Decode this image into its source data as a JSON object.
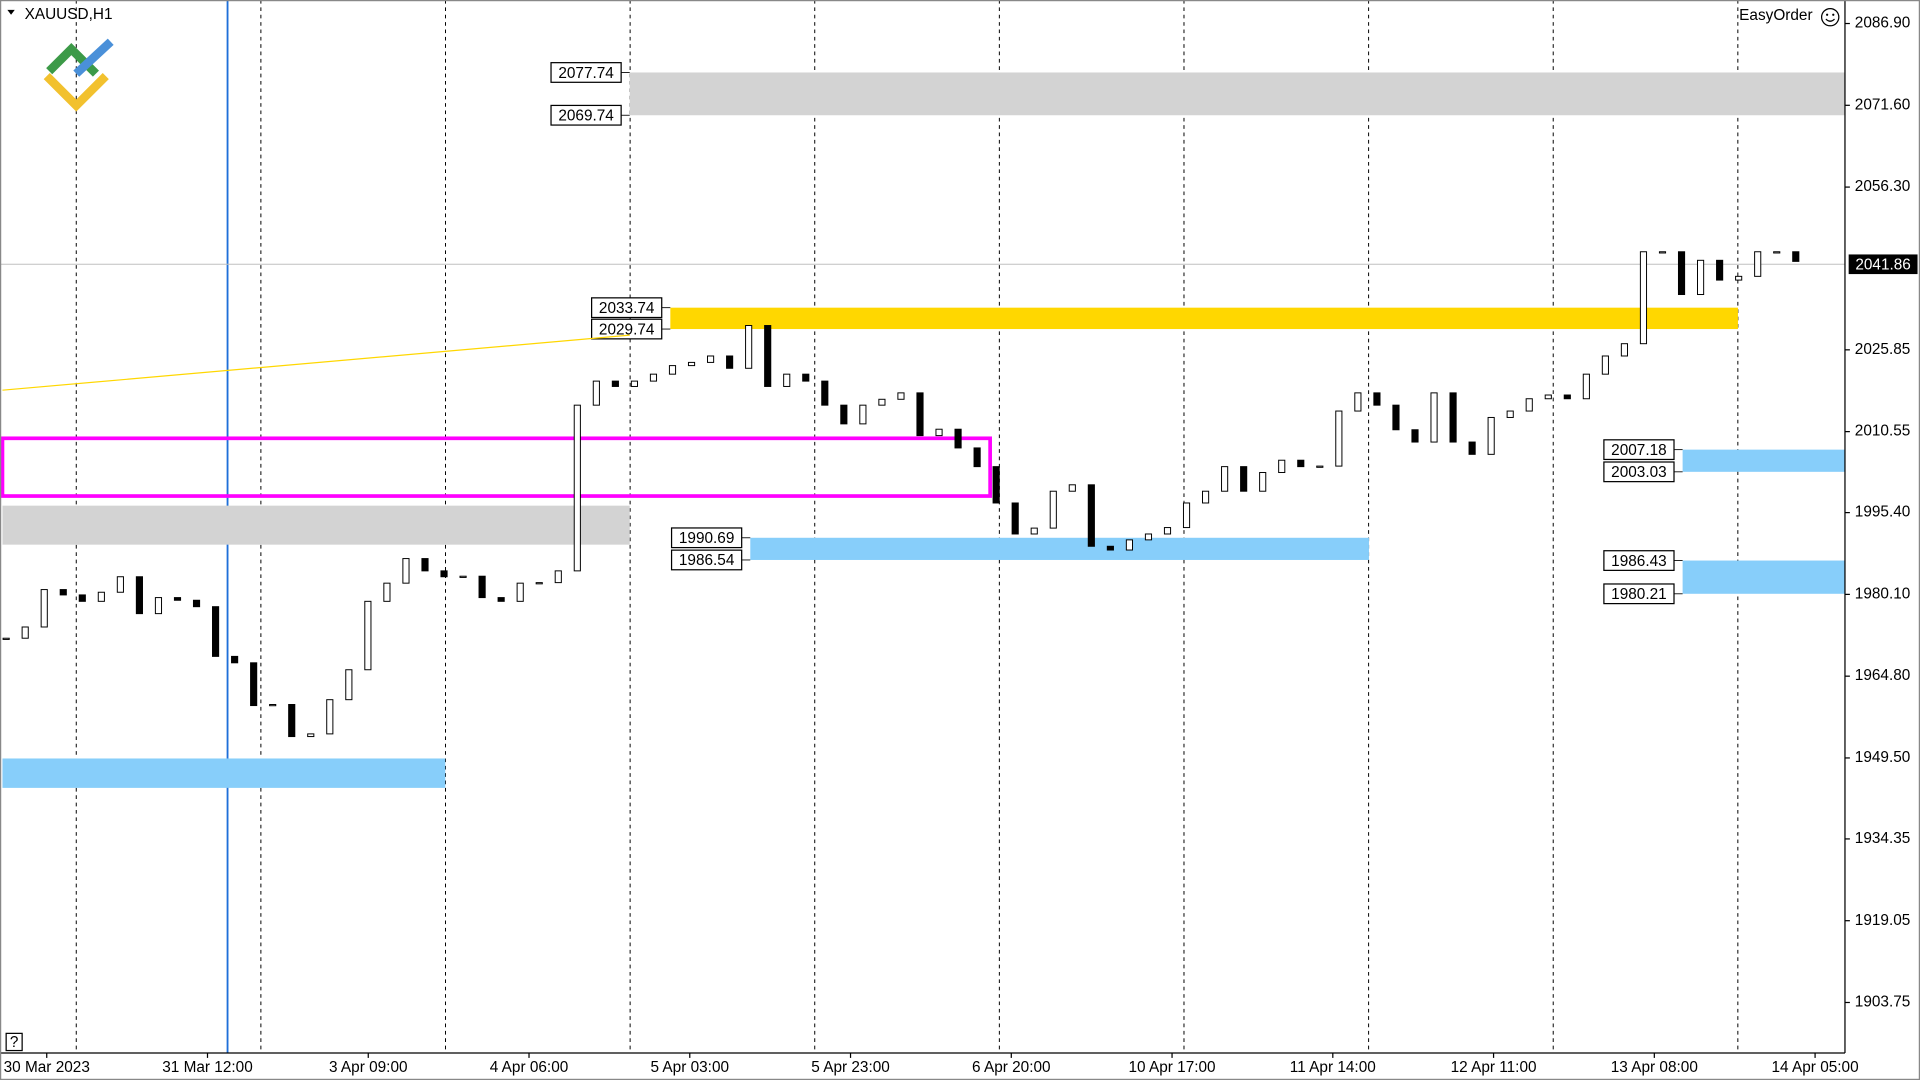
{
  "header": {
    "symbol": "XAUUSD,H1",
    "tool": "EasyOrder",
    "help": "?"
  },
  "chart_data": {
    "type": "candlestick",
    "closes": [
      1971.9,
      1974,
      1981,
      1980,
      1978.8,
      1980.5,
      1983.4,
      1976.5,
      1979.5,
      1979,
      1977.8,
      1968.5,
      1967.3,
      1959.3,
      1959.5,
      1953.5,
      1954,
      1960.4,
      1966,
      1978.8,
      1982.2,
      1986.8,
      1984.5,
      1983.4,
      1983.5,
      1979.5,
      1978.8,
      1982.2,
      1982.3,
      1984.5,
      2015.5,
      2020,
      2019,
      2020,
      2021.3,
      2022.9,
      2023.5,
      2024.7,
      2022.4,
      2030.4,
      2019,
      2021.3,
      2020,
      2015.5,
      2012,
      2015.5,
      2016.6,
      2017.8,
      2009.8,
      2011,
      2007.5,
      2004,
      1997.2,
      1991.4,
      1992.5,
      1999.4,
      2000.6,
      1989.1,
      1988.4,
      1990.3,
      1991.4,
      1992.6,
      1997.2,
      1999.4,
      2004,
      1999.4,
      2002.9,
      2005.2,
      2004,
      2004.1,
      2014.4,
      2017.8,
      2015.5,
      2010.9,
      2008.6,
      2017.8,
      2008.6,
      2006.3,
      2013.2,
      2014.4,
      2016.7,
      2017.4,
      2016.7,
      2021.3,
      2024.7,
      2027,
      2044.2,
      2044.2,
      2036.2,
      2042.6,
      2038.9,
      2039.6,
      2044.2,
      2044.2,
      2042.4
    ],
    "ylim": [
      1894.3,
      2091.3
    ],
    "yticks": [
      {
        "value": 2086.9,
        "label": "2086.90"
      },
      {
        "value": 2071.6,
        "label": "2071.60"
      },
      {
        "value": 2056.3,
        "label": "2056.30"
      },
      {
        "value": 2025.85,
        "label": "2025.85"
      },
      {
        "value": 2010.55,
        "label": "2010.55"
      },
      {
        "value": 1995.4,
        "label": "1995.40"
      },
      {
        "value": 1980.1,
        "label": "1980.10"
      },
      {
        "value": 1964.8,
        "label": "1964.80"
      },
      {
        "value": 1949.5,
        "label": "1949.50"
      },
      {
        "value": 1934.35,
        "label": "1934.35"
      },
      {
        "value": 1919.05,
        "label": "1919.05"
      },
      {
        "value": 1903.75,
        "label": "1903.75"
      }
    ],
    "x_labels": [
      "30 Mar 2023",
      "31 Mar 12:00",
      "3 Apr 09:00",
      "4 Apr 06:00",
      "5 Apr 03:00",
      "5 Apr 23:00",
      "6 Apr 20:00",
      "10 Apr 17:00",
      "11 Apr 14:00",
      "12 Apr 11:00",
      "13 Apr 08:00",
      "14 Apr 05:00"
    ],
    "current_price": 2041.86,
    "trendline": [
      2018.3,
      2028.6
    ],
    "trendline_color": "#ffd700",
    "zones": [
      {
        "top": 2077.74,
        "bottom": 2069.74,
        "color": "#d3d3d3",
        "filled": true
      },
      {
        "top": 2033.74,
        "bottom": 2029.74,
        "color": "#ffd700",
        "filled": true
      },
      {
        "top": 1990.69,
        "bottom": 1986.54,
        "color": "#87cefa",
        "filled": true
      },
      {
        "top": 2007.18,
        "bottom": 2003.03,
        "color": "#87cefa",
        "filled": true
      },
      {
        "top": 1986.43,
        "bottom": 1980.21,
        "color": "#87cefa",
        "filled": true
      },
      {
        "top": 1996.7,
        "bottom": 1989.4,
        "color": "#d3d3d3",
        "filled": true
      },
      {
        "top": 1949.4,
        "bottom": 1943.9,
        "color": "#87cefa",
        "filled": true
      },
      {
        "top": 2009.3,
        "bottom": 1998.5,
        "color": "#ff00ff",
        "filled": false
      }
    ]
  }
}
